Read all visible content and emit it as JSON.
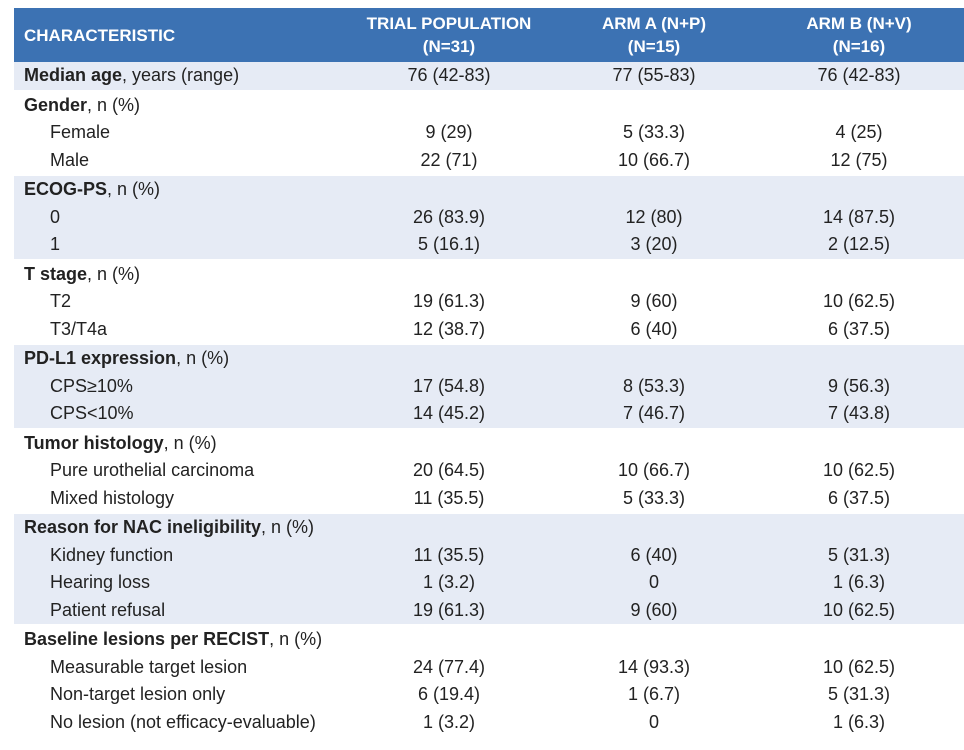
{
  "header": {
    "characteristic": "CHARACTERISTIC",
    "col1_line1": "TRIAL POPULATION",
    "col1_line2": "(N=31)",
    "col2_line1": "ARM A (N+P)",
    "col2_line2": "(N=15)",
    "col3_line1": "ARM B (N+V)",
    "col3_line2": "(N=16)"
  },
  "groups": [
    {
      "title": "Median age",
      "suffix": ", years (range)",
      "shaded": true,
      "values": [
        "76 (42-83)",
        "77 (55-83)",
        "76 (42-83)"
      ],
      "rows": []
    },
    {
      "title": "Gender",
      "suffix": ", n (%)",
      "shaded": false,
      "values": null,
      "rows": [
        {
          "label": "Female",
          "values": [
            "9 (29)",
            "5 (33.3)",
            "4 (25)"
          ]
        },
        {
          "label": "Male",
          "values": [
            "22 (71)",
            "10 (66.7)",
            "12 (75)"
          ]
        }
      ]
    },
    {
      "title": "ECOG-PS",
      "suffix": ", n (%)",
      "shaded": true,
      "values": null,
      "rows": [
        {
          "label": "0",
          "values": [
            "26 (83.9)",
            "12 (80)",
            "14 (87.5)"
          ]
        },
        {
          "label": "1",
          "values": [
            "5 (16.1)",
            "3 (20)",
            "2 (12.5)"
          ]
        }
      ]
    },
    {
      "title": "T stage",
      "suffix": ", n (%)",
      "shaded": false,
      "values": null,
      "rows": [
        {
          "label": "T2",
          "values": [
            "19 (61.3)",
            "9 (60)",
            "10 (62.5)"
          ]
        },
        {
          "label": "T3/T4a",
          "values": [
            "12 (38.7)",
            "6 (40)",
            "6 (37.5)"
          ]
        }
      ]
    },
    {
      "title": "PD-L1 expression",
      "suffix": ", n (%)",
      "shaded": true,
      "values": null,
      "rows": [
        {
          "label": "CPS≥10%",
          "values": [
            "17 (54.8)",
            "8 (53.3)",
            "9 (56.3)"
          ]
        },
        {
          "label": "CPS<10%",
          "values": [
            "14 (45.2)",
            "7 (46.7)",
            "7 (43.8)"
          ]
        }
      ]
    },
    {
      "title": "Tumor histology",
      "suffix": ", n (%)",
      "shaded": false,
      "values": null,
      "rows": [
        {
          "label": "Pure urothelial carcinoma",
          "values": [
            "20 (64.5)",
            "10 (66.7)",
            "10 (62.5)"
          ]
        },
        {
          "label": "Mixed histology",
          "values": [
            "11 (35.5)",
            "5 (33.3)",
            "6 (37.5)"
          ]
        }
      ]
    },
    {
      "title": "Reason for NAC ineligibility",
      "suffix": ", n (%)",
      "shaded": true,
      "values": null,
      "rows": [
        {
          "label": "Kidney function",
          "values": [
            "11 (35.5)",
            "6 (40)",
            "5 (31.3)"
          ]
        },
        {
          "label": "Hearing loss",
          "values": [
            "1 (3.2)",
            "0",
            "1 (6.3)"
          ]
        },
        {
          "label": "Patient refusal",
          "values": [
            "19 (61.3)",
            "9 (60)",
            "10 (62.5)"
          ]
        }
      ]
    },
    {
      "title": "Baseline lesions per RECIST",
      "suffix": ", n (%)",
      "shaded": false,
      "values": null,
      "rows": [
        {
          "label": "Measurable target lesion",
          "values": [
            "24 (77.4)",
            "14 (93.3)",
            "10 (62.5)"
          ]
        },
        {
          "label": "Non-target lesion only",
          "values": [
            "6 (19.4)",
            "1 (6.7)",
            "5 (31.3)"
          ]
        },
        {
          "label": "No lesion (not efficacy-evaluable)",
          "values": [
            "1 (3.2)",
            "0",
            "1 (6.3)"
          ]
        }
      ]
    }
  ],
  "colors": {
    "header_bg": "#3c72b3",
    "shade_bg": "#e6ebf5"
  }
}
